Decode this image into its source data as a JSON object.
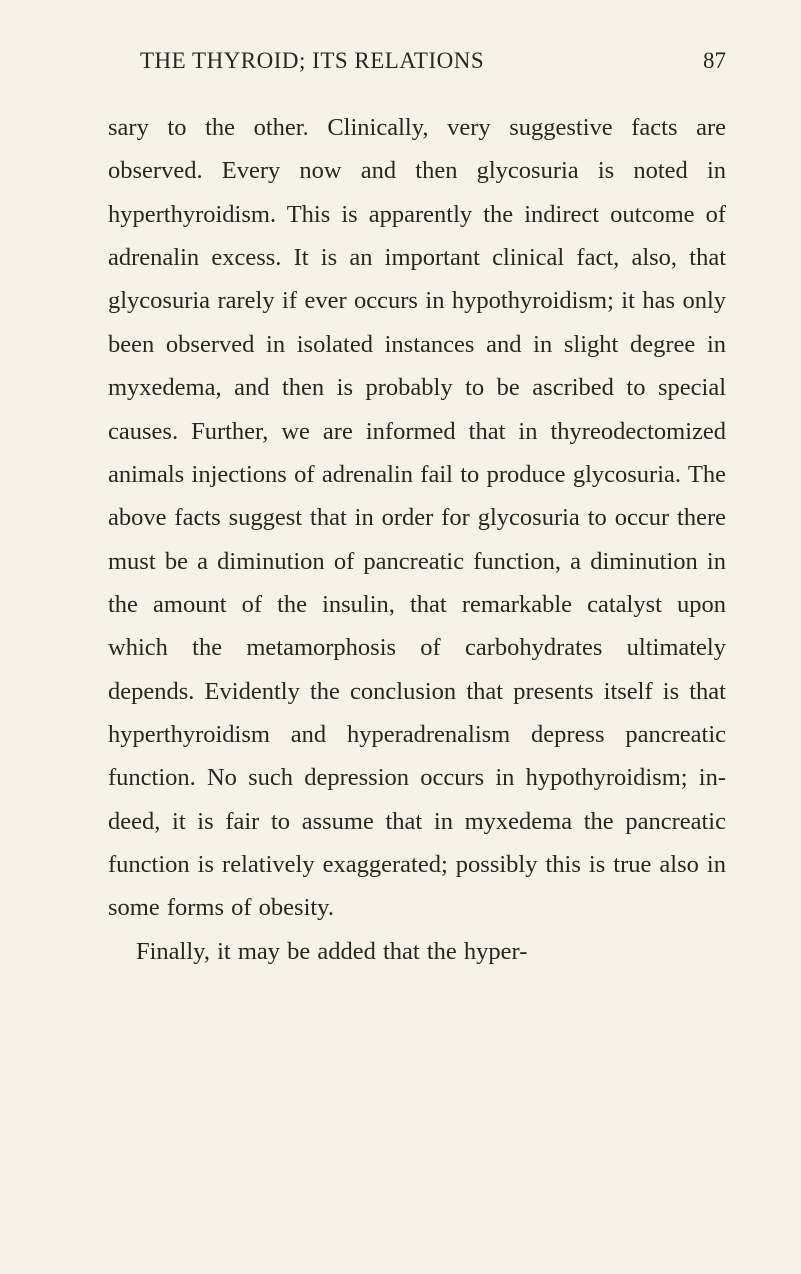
{
  "header": {
    "title": "THE THYROID; ITS RELATIONS",
    "pageNumber": "87"
  },
  "paragraphs": {
    "p1": "sary to the other. Clinically, very suggestive facts are observed. Every now and then gly­cosuria is noted in hyperthyroidism. This is apparently the indirect outcome of adrenalin excess. It is an important clinical fact, also, that glycosuria rarely if ever occurs in hypo­thyroidism; it has only been observed in iso­lated instances and in slight degree in myx­edema, and then is probably to be ascribed to special causes. Further, we are informed that in thyreodectomized animals injections of ad­renalin fail to produce glycosuria. The above facts suggest that in order for glycosuria to occur there must be a diminution of pancreatic function, a diminution in the amount of the insulin, that remarkable catalyst upon which the metamorphosis of carbohydrates ultimately depends. Evidently the conclusion that pre­sents itself is that hyperthyroidism and hyper­adrenalism depress pancreatic function. No such depression occurs in hypothyroidism; in­deed, it is fair to assume that in myxedema the pancreatic function is relatively exaggerated; possibly this is true also in some forms of obesity.",
    "p2": "Finally, it may be added that the hyper-"
  },
  "styling": {
    "backgroundColor": "#f7f2e8",
    "textColor": "#2a2520",
    "bodyFontSize": 24.5,
    "headerFontSize": 23,
    "lineHeight": 1.77,
    "pageWidth": 801,
    "pageHeight": 1274
  }
}
